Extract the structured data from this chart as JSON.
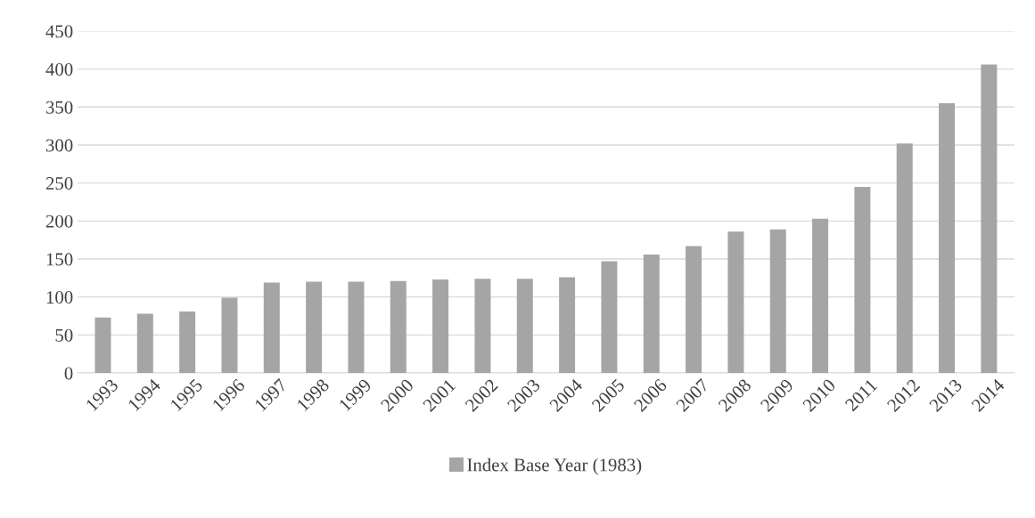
{
  "chart_data": {
    "type": "bar",
    "categories": [
      "1993",
      "1994",
      "1995",
      "1996",
      "1997",
      "1998",
      "1999",
      "2000",
      "2001",
      "2002",
      "2003",
      "2004",
      "2005",
      "2006",
      "2007",
      "2008",
      "2009",
      "2010",
      "2011",
      "2012",
      "2013",
      "2014"
    ],
    "series": [
      {
        "name": "Index Base Year (1983)",
        "color": "#a5a5a5",
        "values": [
          73,
          78,
          81,
          99,
          119,
          120,
          120,
          121,
          123,
          124,
          124,
          126,
          147,
          156,
          167,
          186,
          189,
          203,
          245,
          302,
          355,
          406
        ]
      }
    ],
    "ylim": [
      0,
      450
    ],
    "yticks": [
      0,
      50,
      100,
      150,
      200,
      250,
      300,
      350,
      400,
      450
    ],
    "grid": "y",
    "legend": "bottom"
  }
}
